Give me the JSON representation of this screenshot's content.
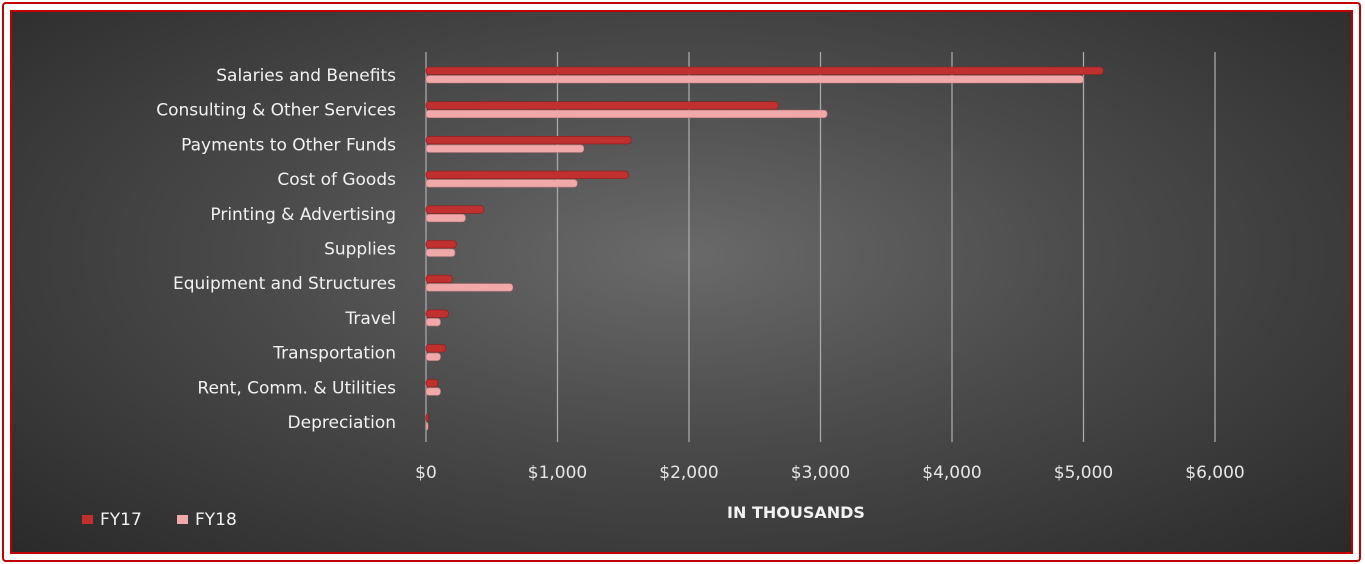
{
  "chart_data": {
    "type": "bar",
    "orientation": "horizontal",
    "title": "",
    "xlabel": "IN THOUSANDS",
    "ylabel": "",
    "xlim": [
      0,
      6000
    ],
    "x_ticks": [
      "$0",
      "$1,000",
      "$2,000",
      "$3,000",
      "$4,000",
      "$5,000",
      "$6,000"
    ],
    "tick_values": [
      0,
      1000,
      2000,
      3000,
      4000,
      5000,
      6000
    ],
    "grid": true,
    "legend_position": "bottom-left",
    "categories": [
      "Salaries and Benefits",
      "Consulting & Other Services",
      "Payments to Other Funds",
      "Cost of Goods",
      "Printing & Advertising",
      "Supplies",
      "Equipment and Structures",
      "Travel",
      "Transportation",
      "Rent, Comm. & Utilities",
      "Depreciation"
    ],
    "series": [
      {
        "name": "FY17",
        "color": "#c0302f",
        "values": [
          5150,
          2680,
          1560,
          1540,
          440,
          230,
          200,
          170,
          150,
          90,
          20
        ]
      },
      {
        "name": "FY18",
        "color": "#f0a8a8",
        "values": [
          5000,
          3050,
          1200,
          1150,
          300,
          220,
          660,
          110,
          110,
          110,
          10
        ]
      }
    ]
  }
}
